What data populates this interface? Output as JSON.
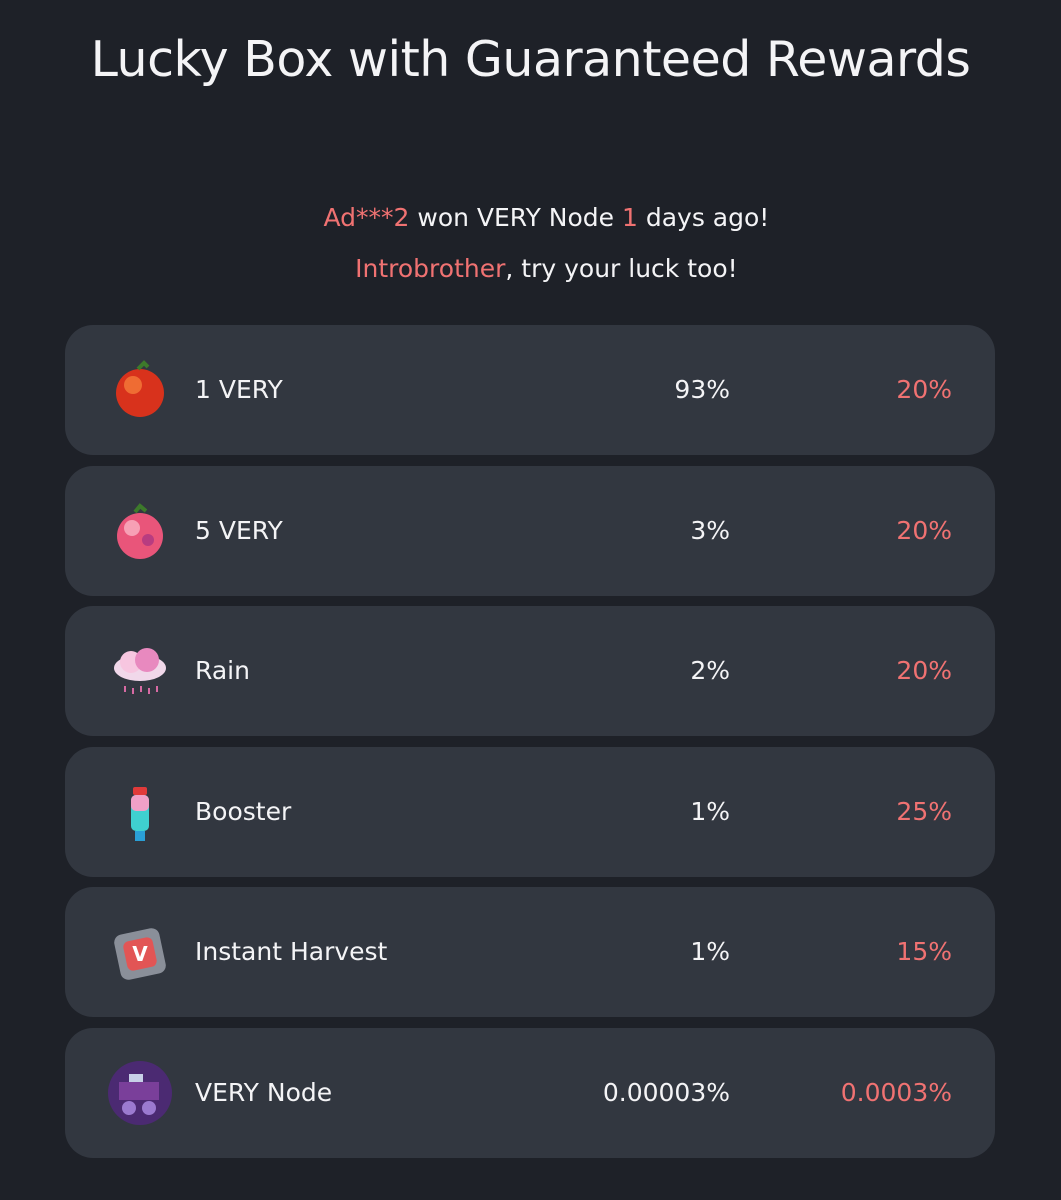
{
  "header": {
    "title": "Lucky Box with Guaranteed Rewards"
  },
  "announcement": {
    "line1": [
      "Ad***2",
      " won VERY Node ",
      "1",
      " days ago!"
    ],
    "line2": [
      "Introbrother",
      ", try your luck too!"
    ]
  },
  "table": {
    "rows": [
      [
        "1 VERY",
        "93%",
        "20%"
      ],
      [
        "5 VERY",
        "3%",
        "20%"
      ],
      [
        "Rain",
        "2%",
        "20%"
      ],
      [
        "Booster",
        "1%",
        "25%"
      ],
      [
        "Instant Harvest",
        "1%",
        "15%"
      ],
      [
        "VERY Node",
        "0.00003%",
        "0.0003%"
      ]
    ]
  }
}
